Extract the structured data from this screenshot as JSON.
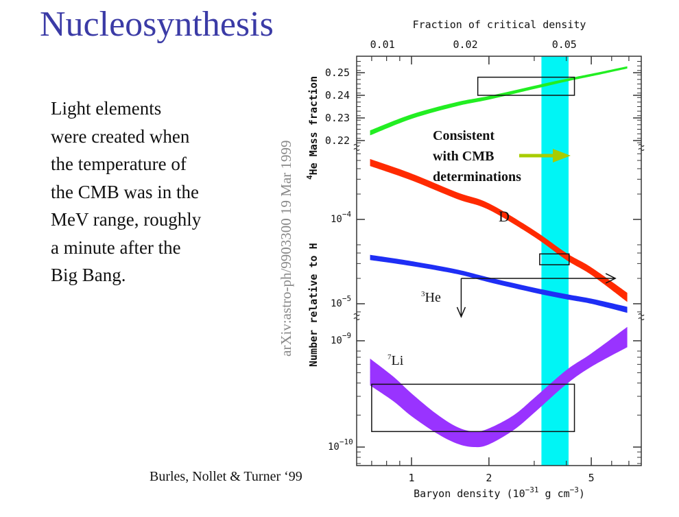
{
  "slide": {
    "title": "Nucleosynthesis",
    "body_lines": [
      "Light elements",
      "were created when",
      "the temperature of",
      "the CMB was in the",
      "MeV range, roughly",
      "a minute after the",
      "Big Bang."
    ],
    "arxiv_stamp": "arXiv:astro-ph/9903300   19 Mar 1999",
    "credit": "Burles, Nollet & Turner ‘99"
  },
  "chart_data": {
    "type": "line",
    "top_axis": {
      "label": "Fraction of critical density",
      "ticks": [
        {
          "label": "0.01",
          "x": 0.81
        },
        {
          "label": "0.02",
          "x": 1.62
        },
        {
          "label": "0.05",
          "x": 4.05
        }
      ]
    },
    "xlabel": {
      "text": "Baryon density (10",
      "exp1": "−31",
      "mid": " g cm",
      "exp2": "−3",
      "end": ")"
    },
    "x_scale": "log",
    "xlim": [
      0.61,
      7.8
    ],
    "x_ticks": [
      {
        "label": "1",
        "value": 1
      },
      {
        "label": "2",
        "value": 2
      },
      {
        "label": "5",
        "value": 5
      }
    ],
    "panels": {
      "he4": {
        "ylabel_sup": "4",
        "ylabel": "He Mass fraction",
        "ylim": [
          0.218,
          0.257
        ],
        "ticks": [
          {
            "label": "0.25",
            "value": 0.25
          },
          {
            "label": "0.24",
            "value": 0.24
          },
          {
            "label": "0.23",
            "value": 0.23
          },
          {
            "label": "0.22",
            "value": 0.22
          }
        ]
      },
      "light": {
        "ylabel": "Number relative to H",
        "scale": "log",
        "ylim": [
          6e-06,
          0.0015
        ],
        "ticks": [
          {
            "base": "10",
            "exp": "−4",
            "value": 0.0001
          },
          {
            "base": "10",
            "exp": "−5",
            "value": 1e-05
          }
        ]
      },
      "li": {
        "scale": "log",
        "ylim": [
          6e-11,
          1.2e-09
        ],
        "ticks": [
          {
            "base": "10",
            "exp": "−9",
            "value": 1e-09
          },
          {
            "base": "10",
            "exp": "−10",
            "value": 1e-10
          }
        ]
      }
    },
    "series": [
      {
        "name": "4He",
        "panel": "he4",
        "color": "#22ee22",
        "x": [
          0.69,
          1,
          1.5,
          2,
          3,
          4,
          5,
          6.9
        ],
        "low": [
          0.2223,
          0.2296,
          0.2352,
          0.2381,
          0.2428,
          0.2461,
          0.2484,
          0.2518
        ],
        "high": [
          0.2245,
          0.2316,
          0.237,
          0.2397,
          0.2442,
          0.2473,
          0.2495,
          0.2528
        ]
      },
      {
        "name": "D",
        "label": "D",
        "panel": "light",
        "color": "#ff2a00",
        "x": [
          0.69,
          1,
          1.5,
          2,
          3,
          4,
          5,
          6.9
        ],
        "low": [
          0.00043,
          0.00029,
          0.000175,
          0.00013,
          6.2e-05,
          3.3e-05,
          2.2e-05,
          1.05e-05
        ],
        "high": [
          0.00052,
          0.00035,
          0.00021,
          0.000155,
          7.4e-05,
          4e-05,
          2.7e-05,
          1.35e-05
        ]
      },
      {
        "name": "3He",
        "label_sup": "3",
        "label": "He",
        "panel": "light",
        "color": "#1e2ef5",
        "x": [
          0.69,
          1,
          1.5,
          2,
          3,
          4,
          5,
          6.9
        ],
        "low": [
          3.3e-05,
          2.8e-05,
          2.25e-05,
          1.8e-05,
          1.35e-05,
          1.13e-05,
          1e-05,
          7.8e-06
        ],
        "high": [
          3.8e-05,
          3.2e-05,
          2.55e-05,
          2.05e-05,
          1.55e-05,
          1.3e-05,
          1.15e-05,
          9.2e-06
        ]
      },
      {
        "name": "7Li",
        "label_sup": "7",
        "label": "Li",
        "panel": "li",
        "color": "#9933ff",
        "x": [
          0.69,
          0.85,
          1,
          1.25,
          1.5,
          1.75,
          2,
          2.5,
          3,
          4,
          5,
          6.9
        ],
        "low": [
          3.8e-10,
          2.7e-10,
          1.95e-10,
          1.35e-10,
          1.08e-10,
          1e-10,
          1.06e-10,
          1.45e-10,
          2.1e-10,
          3.9e-10,
          5.7e-10,
          8.7e-10
        ],
        "high": [
          6.8e-10,
          4.6e-10,
          3.2e-10,
          2.05e-10,
          1.55e-10,
          1.4e-10,
          1.5e-10,
          2e-10,
          2.9e-10,
          5.3e-10,
          7.6e-10,
          1.35e-09
        ]
      }
    ],
    "cmb_band": {
      "x": [
        3.2,
        4.08
      ],
      "color": "#00f5f5"
    },
    "boxes": [
      {
        "panel": "he4",
        "x": [
          1.81,
          4.3
        ],
        "y": [
          0.24,
          0.248
        ]
      },
      {
        "panel": "light",
        "x": [
          3.15,
          4.1
        ],
        "y": [
          2.9e-05,
          3.9e-05
        ]
      },
      {
        "panel": "li",
        "x": [
          0.7,
          4.3
        ],
        "y": [
          1.4e-10,
          3.9e-10
        ]
      }
    ],
    "he3_limit": {
      "x": [
        1.56,
        6.2
      ],
      "y": 2e-05
    },
    "annotation": {
      "lines": [
        "Consistent",
        "with CMB",
        "determinations"
      ],
      "arrow_color": "#a8cc00"
    }
  }
}
